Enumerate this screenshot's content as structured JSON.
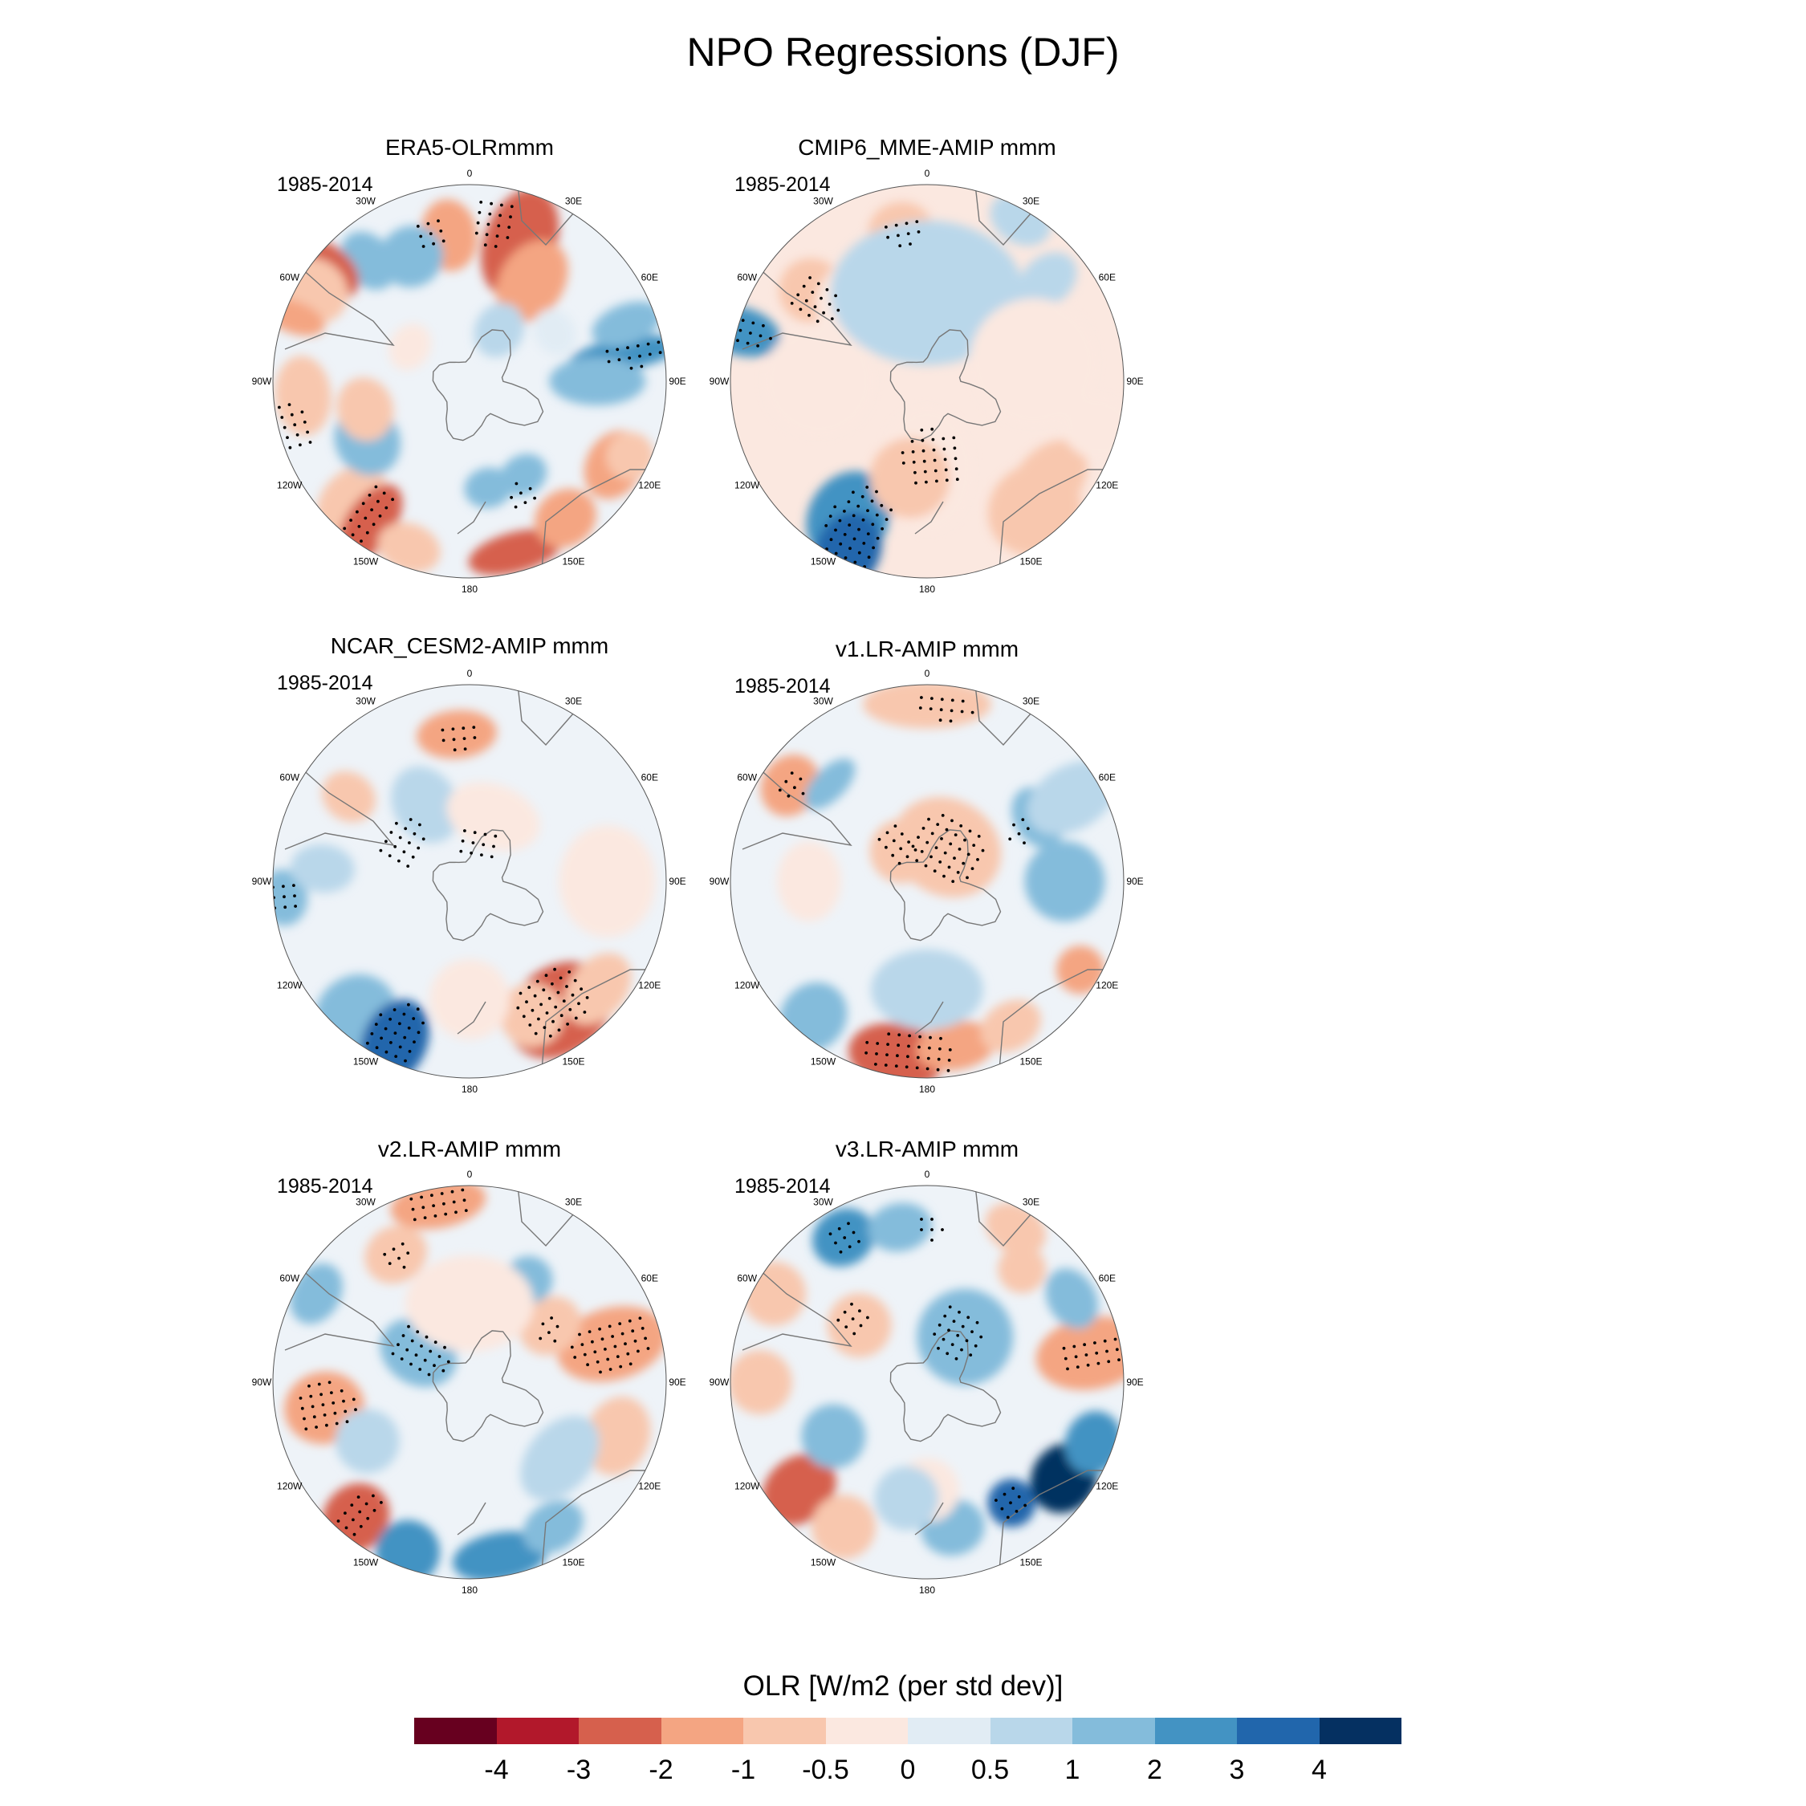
{
  "title": "NPO Regressions (DJF)",
  "period": "1985-2014",
  "longitude_labels": [
    "0",
    "30E",
    "60E",
    "90E",
    "120E",
    "150E",
    "180",
    "150W",
    "120W",
    "90W",
    "60W",
    "30W"
  ],
  "panels": [
    {
      "title": "ERA5-OLRmmm",
      "blobs": [
        [
          20,
          0.75,
          45,
          70,
          -3
        ],
        [
          32,
          0.6,
          40,
          55,
          -2
        ],
        [
          -8,
          0.75,
          35,
          45,
          -2
        ],
        [
          -25,
          0.7,
          40,
          38,
          1
        ],
        [
          -40,
          0.8,
          30,
          40,
          1
        ],
        [
          -52,
          0.92,
          30,
          45,
          -3
        ],
        [
          -60,
          0.92,
          40,
          45,
          -1
        ],
        [
          -70,
          0.95,
          20,
          40,
          -2
        ],
        [
          -95,
          0.85,
          50,
          35,
          -1
        ],
        [
          -135,
          0.85,
          35,
          50,
          -1
        ],
        [
          -145,
          0.88,
          30,
          55,
          -3
        ],
        [
          -160,
          0.9,
          40,
          30,
          -1
        ],
        [
          165,
          0.9,
          60,
          25,
          -3
        ],
        [
          145,
          0.85,
          40,
          35,
          -2
        ],
        [
          150,
          0.55,
          30,
          25,
          1
        ],
        [
          120,
          0.85,
          45,
          35,
          -2
        ],
        [
          115,
          0.9,
          30,
          30,
          -1
        ],
        [
          80,
          0.8,
          20,
          70,
          2
        ],
        [
          90,
          0.65,
          30,
          60,
          1
        ],
        [
          70,
          0.85,
          25,
          45,
          1
        ],
        [
          60,
          0.5,
          30,
          25,
          0
        ],
        [
          170,
          0.55,
          30,
          25,
          1
        ],
        [
          -120,
          0.6,
          45,
          40,
          1
        ],
        [
          -105,
          0.55,
          40,
          35,
          -1
        ],
        [
          30,
          0.3,
          30,
          35,
          0.5
        ],
        [
          -60,
          0.35,
          30,
          25,
          -0.5
        ]
      ],
      "stipples": [
        [
          8,
          0.82,
          30,
          35
        ],
        [
          -15,
          0.78,
          25,
          25
        ],
        [
          80,
          0.85,
          20,
          45
        ],
        [
          -105,
          0.92,
          35,
          25
        ],
        [
          -143,
          0.85,
          25,
          45
        ],
        [
          155,
          0.65,
          25,
          20
        ]
      ]
    },
    {
      "title": "CMIP6_MME-AMIP  mmm",
      "blobs": [
        [
          -10,
          0.78,
          40,
          35,
          -1
        ],
        [
          -52,
          0.75,
          40,
          40,
          -1
        ],
        [
          -75,
          0.98,
          30,
          50,
          2
        ],
        [
          -150,
          0.8,
          50,
          60,
          2
        ],
        [
          -155,
          0.95,
          40,
          50,
          3
        ],
        [
          140,
          0.85,
          60,
          55,
          -1
        ],
        [
          130,
          0.8,
          60,
          40,
          -1
        ],
        [
          105,
          0.9,
          40,
          45,
          -0.5
        ],
        [
          30,
          0.95,
          40,
          30,
          0.5
        ],
        [
          50,
          0.8,
          30,
          40,
          0.5
        ],
        [
          -40,
          0.5,
          60,
          60,
          -0.5
        ],
        [
          -90,
          0.55,
          70,
          70,
          -0.5
        ],
        [
          0,
          0.45,
          120,
          90,
          0.5
        ],
        [
          180,
          0.45,
          60,
          80,
          -0.5
        ],
        [
          80,
          0.55,
          80,
          80,
          -0.5
        ],
        [
          -170,
          0.5,
          50,
          50,
          -1
        ]
      ],
      "stipples": [
        [
          -10,
          0.78,
          30,
          20
        ],
        [
          -55,
          0.7,
          30,
          35
        ],
        [
          -75,
          0.98,
          25,
          40
        ],
        [
          -155,
          0.85,
          40,
          60
        ],
        [
          175,
          0.4,
          40,
          40
        ]
      ]
    },
    {
      "title": "NCAR_CESM2-AMIP  mmm",
      "blobs": [
        [
          -5,
          0.75,
          50,
          30,
          -2
        ],
        [
          -55,
          0.75,
          30,
          35,
          -1
        ],
        [
          -95,
          0.95,
          35,
          30,
          1
        ],
        [
          -85,
          0.75,
          30,
          40,
          0.5
        ],
        [
          -140,
          0.9,
          50,
          55,
          1
        ],
        [
          -155,
          0.9,
          40,
          55,
          3
        ],
        [
          145,
          0.8,
          70,
          55,
          -3
        ],
        [
          155,
          0.75,
          40,
          40,
          -1
        ],
        [
          130,
          0.85,
          50,
          35,
          -1
        ],
        [
          -30,
          0.45,
          40,
          50,
          0.5
        ],
        [
          20,
          0.35,
          60,
          40,
          -0.5
        ],
        [
          90,
          0.7,
          70,
          60,
          -0.5
        ],
        [
          180,
          0.6,
          50,
          50,
          -0.5
        ]
      ],
      "stipples": [
        [
          -5,
          0.75,
          30,
          20
        ],
        [
          -95,
          0.95,
          25,
          25
        ],
        [
          -60,
          0.4,
          35,
          30
        ],
        [
          10,
          0.2,
          30,
          25
        ],
        [
          -155,
          0.9,
          35,
          55
        ],
        [
          145,
          0.75,
          50,
          45
        ]
      ]
    },
    {
      "title": "v1.LR-AMIP  mmm",
      "blobs": [
        [
          0,
          0.9,
          80,
          30,
          -1
        ],
        [
          -55,
          0.85,
          40,
          35,
          -2
        ],
        [
          -45,
          0.7,
          40,
          20,
          1
        ],
        [
          -90,
          0.6,
          50,
          40,
          -0.5
        ],
        [
          -140,
          0.9,
          40,
          45,
          1
        ],
        [
          -170,
          0.9,
          60,
          40,
          -3
        ],
        [
          170,
          0.85,
          50,
          30,
          -2
        ],
        [
          150,
          0.85,
          40,
          30,
          -1
        ],
        [
          120,
          0.9,
          30,
          30,
          -2
        ],
        [
          90,
          0.7,
          50,
          50,
          1
        ],
        [
          60,
          0.65,
          40,
          30,
          1
        ],
        [
          30,
          0.2,
          70,
          60,
          -1
        ],
        [
          -40,
          0.2,
          40,
          40,
          -1
        ],
        [
          180,
          0.55,
          70,
          50,
          0.5
        ],
        [
          60,
          0.85,
          40,
          60,
          0.5
        ]
      ],
      "stipples": [
        [
          5,
          0.9,
          40,
          20
        ],
        [
          -55,
          0.85,
          25,
          20
        ],
        [
          30,
          0.2,
          50,
          45
        ],
        [
          -40,
          0.25,
          25,
          30
        ],
        [
          -175,
          0.88,
          60,
          30
        ],
        [
          60,
          0.55,
          20,
          20
        ]
      ]
    },
    {
      "title": "v2.LR-AMIP  mmm",
      "blobs": [
        [
          -10,
          0.92,
          60,
          30,
          -2
        ],
        [
          -30,
          0.75,
          40,
          35,
          -1
        ],
        [
          -60,
          0.9,
          40,
          30,
          1
        ],
        [
          -100,
          0.75,
          45,
          50,
          -2
        ],
        [
          -140,
          0.9,
          40,
          45,
          -3
        ],
        [
          -160,
          0.92,
          40,
          40,
          2
        ],
        [
          170,
          0.9,
          60,
          30,
          2
        ],
        [
          150,
          0.85,
          40,
          30,
          1
        ],
        [
          110,
          0.8,
          50,
          40,
          -1
        ],
        [
          75,
          0.75,
          45,
          70,
          -2
        ],
        [
          55,
          0.5,
          35,
          40,
          -1
        ],
        [
          30,
          0.6,
          30,
          30,
          1
        ],
        [
          -60,
          0.3,
          40,
          50,
          1
        ],
        [
          0,
          0.4,
          80,
          60,
          -0.5
        ],
        [
          -120,
          0.6,
          40,
          40,
          0.5
        ],
        [
          130,
          0.6,
          60,
          40,
          0.5
        ]
      ],
      "stipples": [
        [
          -10,
          0.92,
          45,
          25
        ],
        [
          -30,
          0.75,
          25,
          20
        ],
        [
          -100,
          0.75,
          35,
          40
        ],
        [
          -140,
          0.88,
          25,
          35
        ],
        [
          75,
          0.75,
          35,
          55
        ],
        [
          55,
          0.5,
          20,
          20
        ],
        [
          -60,
          0.3,
          30,
          40
        ]
      ]
    },
    {
      "title": "v3.LR-AMIP  mmm",
      "blobs": [
        [
          -30,
          0.85,
          40,
          35,
          2
        ],
        [
          -10,
          0.8,
          40,
          30,
          1
        ],
        [
          -60,
          0.9,
          40,
          40,
          -1
        ],
        [
          -90,
          0.85,
          40,
          40,
          -1
        ],
        [
          -130,
          0.85,
          40,
          50,
          -3
        ],
        [
          -150,
          0.85,
          40,
          40,
          -1
        ],
        [
          170,
          0.75,
          40,
          35,
          1
        ],
        [
          145,
          0.75,
          30,
          30,
          3
        ],
        [
          125,
          0.85,
          45,
          40,
          4
        ],
        [
          110,
          0.9,
          40,
          35,
          2
        ],
        [
          80,
          0.85,
          45,
          70,
          -2
        ],
        [
          60,
          0.85,
          40,
          30,
          1
        ],
        [
          30,
          0.9,
          40,
          30,
          -1
        ],
        [
          40,
          0.75,
          30,
          30,
          -1
        ],
        [
          -50,
          0.45,
          40,
          40,
          -1
        ],
        [
          -120,
          0.55,
          40,
          40,
          1
        ],
        [
          40,
          0.3,
          60,
          60,
          1
        ],
        [
          180,
          0.55,
          40,
          40,
          -0.5
        ],
        [
          -170,
          0.6,
          40,
          40,
          0.5
        ]
      ],
      "stipples": [
        [
          -30,
          0.85,
          25,
          25
        ],
        [
          -50,
          0.5,
          25,
          25
        ],
        [
          80,
          0.85,
          25,
          45
        ],
        [
          145,
          0.75,
          25,
          25
        ],
        [
          30,
          0.3,
          35,
          35
        ],
        [
          0,
          0.8,
          20,
          20
        ]
      ]
    }
  ],
  "colorbar": {
    "title": "OLR [W/m2 (per std dev)]",
    "colors": [
      "#67001f",
      "#b2182b",
      "#d6604d",
      "#f4a582",
      "#f8c7ae",
      "#fbe8e0",
      "#e1ecf4",
      "#b9d7ea",
      "#84bcdb",
      "#4393c3",
      "#2166ac",
      "#053061"
    ],
    "labels": [
      "-4",
      "-3",
      "-2",
      "-1",
      "-0.5",
      "0",
      "0.5",
      "1",
      "2",
      "3",
      "4"
    ],
    "levels": [
      -4,
      -3,
      -2,
      -1,
      -0.5,
      0,
      0.5,
      1,
      2,
      3,
      4
    ]
  }
}
